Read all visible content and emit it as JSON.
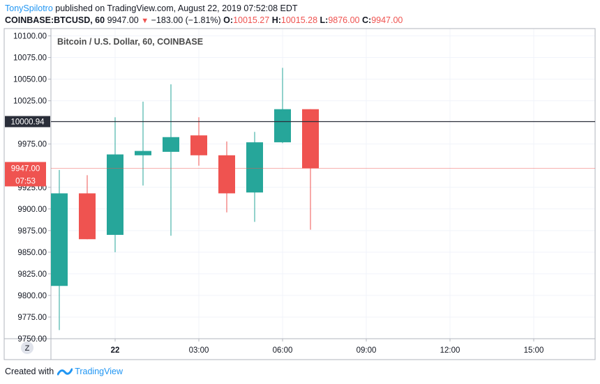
{
  "header": {
    "user": "TonySpilotro",
    "published": "published on TradingView.com, August 22, 2019 07:52:08 EDT"
  },
  "ohlc": {
    "symbol": "COINBASE:BTCUSD, 60",
    "last": "9947.00",
    "change": "−183.00 (−1.81%)",
    "o_label": "O:",
    "o": "10015.27",
    "h_label": "H:",
    "h": "10015.28",
    "l_label": "L:",
    "l": "9876.00",
    "c_label": "C:",
    "c": "9947.00"
  },
  "footer": {
    "created_with": "Created with",
    "brand": "TradingView"
  },
  "colors": {
    "up": "#26a69a",
    "down": "#ef5350",
    "brand": "#2196f3"
  },
  "chart_data": {
    "type": "candlestick",
    "title": "Bitcoin / U.S. Dollar, 60, COINBASE",
    "ylim": [
      9750,
      10100
    ],
    "y_ticks": [
      "10100.00",
      "10075.00",
      "10050.00",
      "10025.00",
      "9975.00",
      "9925.00",
      "9900.00",
      "9875.00",
      "9850.00",
      "9825.00",
      "9800.00",
      "9775.00",
      "9750.00"
    ],
    "y_tick_values": [
      10100,
      10075,
      10050,
      10025,
      9975,
      9925,
      9900,
      9875,
      9850,
      9825,
      9800,
      9775,
      9750
    ],
    "x_ticks": [
      {
        "label": "22",
        "hour": 0,
        "bold": true
      },
      {
        "label": "03:00",
        "hour": 3
      },
      {
        "label": "06:00",
        "hour": 6
      },
      {
        "label": "09:00",
        "hour": 9
      },
      {
        "label": "12:00",
        "hour": 12
      },
      {
        "label": "15:00",
        "hour": 15
      }
    ],
    "x_range_hours": [
      -2.3,
      17.2
    ],
    "candles": [
      {
        "hour": -2,
        "open": 9811,
        "high": 9945,
        "low": 9760,
        "close": 9918
      },
      {
        "hour": -1,
        "open": 9918,
        "high": 9939,
        "low": 9865,
        "close": 9865
      },
      {
        "hour": 0,
        "open": 9870,
        "high": 10006,
        "low": 9850,
        "close": 9963
      },
      {
        "hour": 1,
        "open": 9962,
        "high": 10024,
        "low": 9927,
        "close": 9967
      },
      {
        "hour": 2,
        "open": 9966,
        "high": 10044,
        "low": 9869,
        "close": 9983
      },
      {
        "hour": 3,
        "open": 9985,
        "high": 10006,
        "low": 9950,
        "close": 9962
      },
      {
        "hour": 4,
        "open": 9962,
        "high": 9978,
        "low": 9896,
        "close": 9918
      },
      {
        "hour": 5,
        "open": 9919,
        "high": 9989,
        "low": 9885,
        "close": 9977
      },
      {
        "hour": 6,
        "open": 9977,
        "high": 10063,
        "low": 9976,
        "close": 10015.27
      },
      {
        "hour": 7,
        "open": 10015.27,
        "high": 10015.28,
        "low": 9876,
        "close": 9947
      }
    ],
    "h_line": {
      "value": 10000.94,
      "label": "10000.94"
    },
    "last_price": {
      "value": 9947,
      "label": "9947.00",
      "countdown": "07:53"
    },
    "axis_button": "Z"
  }
}
